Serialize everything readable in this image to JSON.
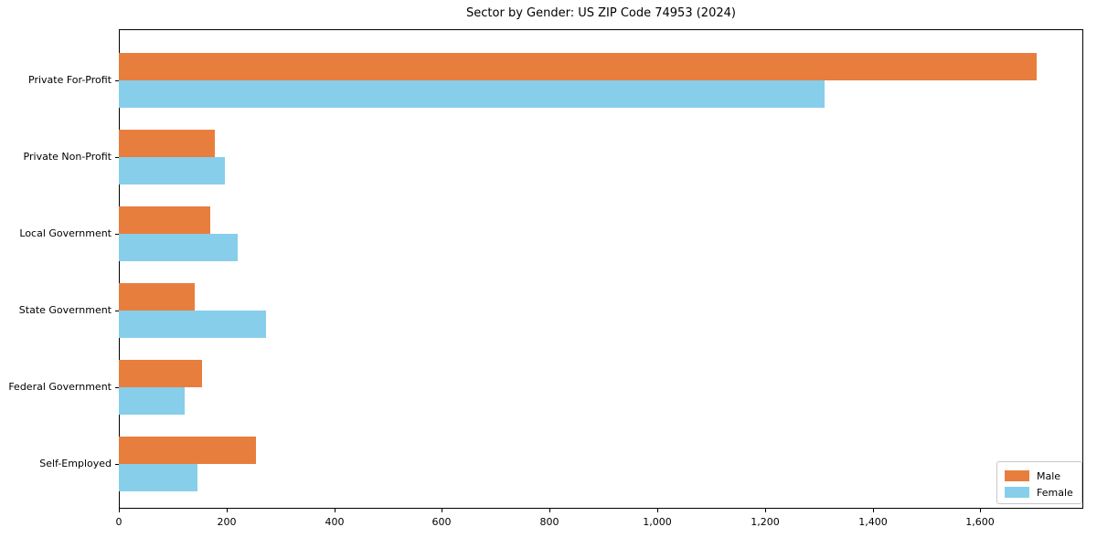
{
  "title": "Sector by Gender: US ZIP Code 74953 (2024)",
  "chart_data": {
    "type": "bar",
    "orientation": "horizontal",
    "title": "Sector by Gender: US ZIP Code 74953 (2024)",
    "xlabel": "",
    "ylabel": "",
    "categories": [
      "Private For-Profit",
      "Private Non-Profit",
      "Local Government",
      "State Government",
      "Federal Government",
      "Self-Employed"
    ],
    "series": [
      {
        "name": "Male",
        "color": "#e87e3e",
        "values": [
          1705,
          178,
          169,
          141,
          154,
          254
        ]
      },
      {
        "name": "Female",
        "color": "#87ceeb",
        "values": [
          1310,
          197,
          220,
          274,
          122,
          146
        ]
      }
    ],
    "xlim": [
      0,
      1791
    ],
    "x_ticks": [
      0,
      200,
      400,
      600,
      800,
      1000,
      1200,
      1400,
      1600
    ],
    "x_tick_labels": [
      "0",
      "200",
      "400",
      "600",
      "800",
      "1,000",
      "1,200",
      "1,400",
      "1,600"
    ],
    "grid": false,
    "legend_position": "lower right"
  }
}
